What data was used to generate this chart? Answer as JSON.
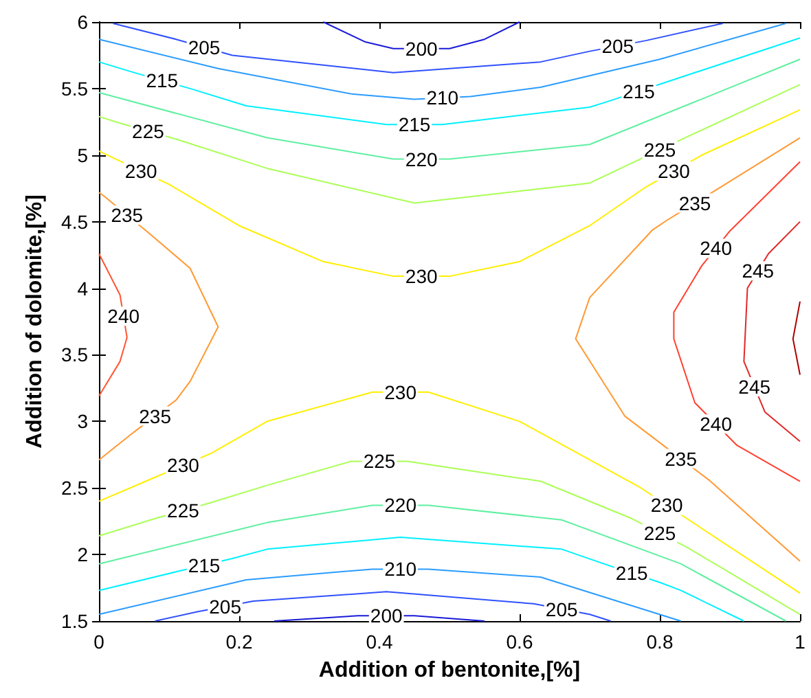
{
  "chart_data": {
    "type": "line",
    "xlabel": "Addition of bentonite,[%]",
    "ylabel": "Addition of dolomite,[%]",
    "xlim": [
      0,
      1
    ],
    "ylim": [
      1.5,
      6
    ],
    "xticks": [
      0,
      0.2,
      0.4,
      0.6,
      0.8,
      1
    ],
    "yticks": [
      1.5,
      2,
      2.5,
      3,
      3.5,
      4,
      4.5,
      5,
      5.5,
      6
    ],
    "grid": false,
    "series": [
      {
        "color": "#1a1ad8",
        "x": [
          0.32,
          0.38,
          0.42,
          0.5,
          0.55,
          0.6
        ],
        "values": [
          6.0,
          5.85,
          5.8,
          5.8,
          5.87,
          6.0
        ]
      },
      {
        "color": "#3050ff",
        "x": [
          0.02,
          0.11,
          0.19,
          0.42,
          0.63,
          0.7,
          0.78,
          0.89
        ],
        "values": [
          5.99,
          5.87,
          5.75,
          5.62,
          5.7,
          5.78,
          5.86,
          5.99
        ]
      },
      {
        "color": "#2a9cff",
        "x": [
          0,
          0.17,
          0.36,
          0.45,
          0.53,
          0.63,
          0.8,
          0.98
        ],
        "values": [
          5.87,
          5.65,
          5.46,
          5.42,
          5.44,
          5.51,
          5.72,
          5.99
        ]
      },
      {
        "color": "#00f0ff",
        "x": [
          0,
          0.05,
          0.13,
          0.21,
          0.41,
          0.49,
          0.7,
          0.73,
          0.81,
          1
        ],
        "values": [
          5.7,
          5.62,
          5.5,
          5.37,
          5.23,
          5.23,
          5.36,
          5.41,
          5.55,
          5.88
        ]
      },
      {
        "color": "#5ef0a0",
        "x": [
          0,
          0.24,
          0.42,
          0.5,
          0.7,
          1
        ],
        "values": [
          5.47,
          5.13,
          4.97,
          4.97,
          5.08,
          5.72
        ]
      },
      {
        "color": "#aaff55",
        "x": [
          0,
          0.03,
          0.11,
          0.24,
          0.45,
          0.7,
          0.76,
          0.84,
          1
        ],
        "values": [
          5.29,
          5.24,
          5.12,
          4.9,
          4.64,
          4.79,
          4.94,
          5.14,
          5.53
        ]
      },
      {
        "color": "#ffee00",
        "x": [
          0,
          0.02,
          0.1,
          0.2,
          0.32,
          0.42,
          0.5,
          0.6,
          0.7,
          0.78,
          0.86,
          1
        ],
        "values": [
          5.03,
          4.98,
          4.78,
          4.47,
          4.2,
          4.09,
          4.09,
          4.2,
          4.47,
          4.76,
          5.0,
          5.34
        ]
      },
      {
        "color": "#ff9933",
        "x": [
          0,
          0.01,
          0.07,
          0.13,
          0.17,
          0.13,
          0.11,
          0.05,
          0
        ],
        "values": [
          4.72,
          4.68,
          4.42,
          4.15,
          3.71,
          3.3,
          3.16,
          2.92,
          2.71
        ]
      },
      {
        "color": "#ff5533",
        "x": [
          0,
          0.03,
          0.04,
          0.03,
          0
        ],
        "values": [
          4.26,
          3.95,
          3.63,
          3.45,
          3.19
        ]
      },
      {
        "color": "#ff9933",
        "x": [
          1,
          0.89,
          0.81,
          0.79,
          0.7,
          0.68,
          0.75,
          0.79,
          0.87,
          1
        ],
        "values": [
          5.13,
          4.77,
          4.51,
          4.44,
          3.93,
          3.62,
          3.04,
          2.88,
          2.56,
          1.95
        ]
      },
      {
        "color": "#ffee00",
        "x": [
          0,
          0.08,
          0.16,
          0.24,
          0.39,
          0.47,
          0.6,
          0.77,
          0.85,
          1
        ],
        "values": [
          2.4,
          2.58,
          2.76,
          3.0,
          3.22,
          3.22,
          3.0,
          2.51,
          2.23,
          1.71
        ]
      },
      {
        "color": "#aaff55",
        "x": [
          0,
          0.08,
          0.16,
          0.24,
          0.36,
          0.44,
          0.63,
          0.76,
          0.84,
          1
        ],
        "values": [
          2.14,
          2.27,
          2.39,
          2.52,
          2.7,
          2.7,
          2.55,
          2.27,
          2.05,
          1.55
        ]
      },
      {
        "color": "#5ef0a0",
        "x": [
          0,
          0.24,
          0.39,
          0.47,
          0.66,
          0.83,
          0.98
        ],
        "values": [
          1.93,
          2.24,
          2.37,
          2.37,
          2.26,
          1.93,
          1.5
        ]
      },
      {
        "color": "#00f0ff",
        "x": [
          0,
          0.11,
          0.19,
          0.24,
          0.43,
          0.66,
          0.72,
          0.8,
          0.83,
          0.92
        ],
        "values": [
          1.73,
          1.87,
          1.97,
          2.04,
          2.13,
          2.04,
          1.93,
          1.79,
          1.73,
          1.5
        ]
      },
      {
        "color": "#2a9cff",
        "x": [
          0,
          0.21,
          0.39,
          0.47,
          0.63,
          0.83
        ],
        "values": [
          1.55,
          1.81,
          1.89,
          1.89,
          1.83,
          1.5
        ]
      },
      {
        "color": "#3050ff",
        "x": [
          0.08,
          0.14,
          0.22,
          0.41,
          0.62,
          0.7,
          0.73
        ],
        "values": [
          1.5,
          1.57,
          1.65,
          1.72,
          1.63,
          1.55,
          1.5
        ]
      },
      {
        "color": "#1a1ad8",
        "x": [
          0.25,
          0.37,
          0.45,
          0.55
        ],
        "values": [
          1.5,
          1.54,
          1.54,
          1.5
        ]
      },
      {
        "color": "#ff4030",
        "x": [
          1,
          0.9,
          0.86,
          0.82,
          0.82,
          0.85,
          0.91,
          1
        ],
        "values": [
          4.95,
          4.43,
          4.17,
          3.82,
          3.62,
          3.14,
          2.82,
          2.55
        ]
      },
      {
        "color": "#e02828",
        "x": [
          1,
          0.955,
          0.925,
          0.92,
          0.95,
          1
        ],
        "values": [
          4.5,
          4.26,
          4.0,
          3.45,
          3.07,
          2.85
        ]
      },
      {
        "color": "#b00000",
        "x": [
          1,
          0.99,
          1
        ],
        "values": [
          3.9,
          3.62,
          3.35
        ]
      }
    ],
    "annotations": [
      {
        "text": "200",
        "x": 0.46,
        "y": 5.8
      },
      {
        "text": "205",
        "x": 0.15,
        "y": 5.81
      },
      {
        "text": "205",
        "x": 0.74,
        "y": 5.82
      },
      {
        "text": "210",
        "x": 0.49,
        "y": 5.43
      },
      {
        "text": "215",
        "x": 0.09,
        "y": 5.56
      },
      {
        "text": "215",
        "x": 0.45,
        "y": 5.23
      },
      {
        "text": "215",
        "x": 0.77,
        "y": 5.48
      },
      {
        "text": "225",
        "x": 0.07,
        "y": 5.18
      },
      {
        "text": "220",
        "x": 0.46,
        "y": 4.97
      },
      {
        "text": "225",
        "x": 0.8,
        "y": 5.04
      },
      {
        "text": "230",
        "x": 0.06,
        "y": 4.88
      },
      {
        "text": "230",
        "x": 0.82,
        "y": 4.88
      },
      {
        "text": "235",
        "x": 0.04,
        "y": 4.55
      },
      {
        "text": "235",
        "x": 0.85,
        "y": 4.64
      },
      {
        "text": "240",
        "x": 0.035,
        "y": 3.79
      },
      {
        "text": "230",
        "x": 0.46,
        "y": 4.09
      },
      {
        "text": "240",
        "x": 0.88,
        "y": 4.3
      },
      {
        "text": "245",
        "x": 0.94,
        "y": 4.13
      },
      {
        "text": "245",
        "x": 0.935,
        "y": 3.26
      },
      {
        "text": "230",
        "x": 0.43,
        "y": 3.22
      },
      {
        "text": "235",
        "x": 0.08,
        "y": 3.04
      },
      {
        "text": "240",
        "x": 0.88,
        "y": 2.98
      },
      {
        "text": "230",
        "x": 0.12,
        "y": 2.67
      },
      {
        "text": "225",
        "x": 0.4,
        "y": 2.7
      },
      {
        "text": "235",
        "x": 0.83,
        "y": 2.72
      },
      {
        "text": "230",
        "x": 0.81,
        "y": 2.37
      },
      {
        "text": "225",
        "x": 0.12,
        "y": 2.33
      },
      {
        "text": "220",
        "x": 0.43,
        "y": 2.37
      },
      {
        "text": "225",
        "x": 0.8,
        "y": 2.16
      },
      {
        "text": "215",
        "x": 0.15,
        "y": 1.92
      },
      {
        "text": "210",
        "x": 0.43,
        "y": 1.89
      },
      {
        "text": "215",
        "x": 0.76,
        "y": 1.86
      },
      {
        "text": "205",
        "x": 0.18,
        "y": 1.61
      },
      {
        "text": "205",
        "x": 0.66,
        "y": 1.59
      },
      {
        "text": "200",
        "x": 0.41,
        "y": 1.54
      }
    ]
  }
}
